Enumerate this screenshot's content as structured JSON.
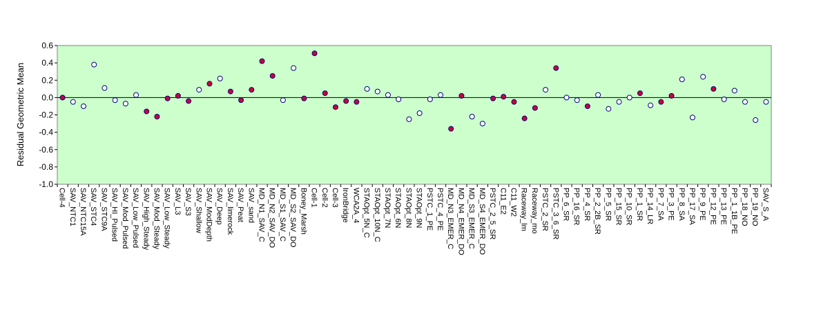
{
  "chart_data": {
    "type": "scatter",
    "title": "",
    "xlabel": "",
    "ylabel": "Residual Geometric Mean",
    "ylim": [
      -1.0,
      0.6
    ],
    "yticks": [
      "0.6",
      "0.4",
      "0.2",
      "0.0",
      "-0.2",
      "-0.4",
      "-0.6",
      "-0.8",
      "-1.0"
    ],
    "grid": false,
    "legend": "none",
    "background_color": "#ccffcc",
    "zero_line": true,
    "categories": [
      "Cell-4",
      "SAV_NTC1",
      "SAV_NTC15A",
      "SAV_STC4",
      "SAV_STC9A",
      "SAV_HI_Pulsed",
      "SAV_Mod_Pulsed",
      "SAV_Low_Pulsed",
      "SAV_High_Steady",
      "SAV_Mod_Steady",
      "SAV_Low_Steady",
      "SAV_L3",
      "SAV_S3",
      "SAV_Shallow",
      "SAV_ModDepth",
      "SAV_Deep",
      "SAV_limerock",
      "SAV_Peat",
      "SAV_sand",
      "MD_N1_SAV_C",
      "MD_N2_SAV_DO",
      "MD_S1_SAV_C",
      "MD_S2_SAV_DO",
      "Boney_Marsh",
      "Cell-1",
      "Cell-2",
      "Cell-3",
      "IronBridge",
      "WCA2A_4",
      "STAOpt_5N_C",
      "STAOpt_10N_C",
      "STAOpt_7N",
      "STAOpt_6N",
      "STAOpt_8N",
      "STAOpt_9N",
      "PSTC_1_PE",
      "PSTC_4_PE",
      "MD_N3_EMER_C",
      "MD_N4_EMER_DO",
      "MD_S3_EMER_C",
      "MD_S4_EMER_DO",
      "PSTC_2_5_SR",
      "C11_E2",
      "C11_W2",
      "Raceway_lm",
      "Raceway_mo",
      "PSTC_2_SR",
      "PSTC_3_6_SR",
      "PP_6_SR",
      "PP_16_SR",
      "PP_4_SR",
      "PP_2_2B_SR",
      "PP_5_SR",
      "PP_15_SR",
      "PP_10_SR",
      "PP_1_SR",
      "PP_14_LR",
      "PP_7_SA",
      "PP_3_PE",
      "PP_8_SA",
      "PP_17_SA",
      "PP_9_PE",
      "PP_12_PE",
      "PP_13_PE",
      "PP_1_1B_PE",
      "PP_18_NO",
      "PP_19_NO",
      "SAV_S_A"
    ],
    "series": [
      {
        "marker": "circle",
        "values": [
          0.0,
          -0.05,
          -0.1,
          0.38,
          0.11,
          -0.03,
          -0.07,
          0.03,
          -0.16,
          -0.22,
          -0.01,
          0.02,
          -0.04,
          0.09,
          0.16,
          0.22,
          0.07,
          -0.03,
          0.09,
          0.42,
          0.25,
          -0.03,
          0.34,
          -0.01,
          0.51,
          0.05,
          -0.11,
          -0.04,
          -0.05,
          0.1,
          0.07,
          0.03,
          -0.02,
          -0.25,
          -0.18,
          -0.02,
          0.03,
          -0.36,
          0.02,
          -0.22,
          -0.3,
          -0.01,
          0.01,
          -0.05,
          -0.24,
          -0.12,
          0.09,
          0.34,
          0.0,
          -0.03,
          -0.1,
          0.03,
          -0.13,
          -0.05,
          0.0,
          0.05,
          -0.09,
          -0.05,
          0.02,
          0.21,
          -0.23,
          0.24,
          0.1,
          -0.02,
          0.08,
          -0.05,
          -0.26,
          -0.05
        ],
        "fills": [
          "#cc0033",
          "#ffffff",
          "#ffffff",
          "#ffffff",
          "#ffffff",
          "#ffffff",
          "#ffffff",
          "#ffffff",
          "#cc0033",
          "#cc0033",
          "#cc0033",
          "#cc0033",
          "#cc0033",
          "#ffffff",
          "#cc0033",
          "#ffffff",
          "#cc0033",
          "#cc0033",
          "#cc0033",
          "#cc0033",
          "#cc0033",
          "#ffffff",
          "#ffffff",
          "#cc0033",
          "#cc0033",
          "#cc0033",
          "#cc0033",
          "#cc0033",
          "#cc0033",
          "#ffffff",
          "#ffffff",
          "#ffffff",
          "#ffffff",
          "#ffffff",
          "#ffffff",
          "#ffffff",
          "#ffffff",
          "#cc0033",
          "#cc0033",
          "#ffffff",
          "#ffffff",
          "#cc0033",
          "#cc0033",
          "#cc0033",
          "#cc0033",
          "#cc0033",
          "#ffffff",
          "#cc0033",
          "#ffffff",
          "#ffffff",
          "#cc0033",
          "#ffffff",
          "#ffffff",
          "#ffffff",
          "#ffffff",
          "#cc0033",
          "#ffffff",
          "#cc0033",
          "#cc0033",
          "#ffffff",
          "#ffffff",
          "#ffffff",
          "#cc0033",
          "#ffffff",
          "#ffffff",
          "#ffffff",
          "#ffffff",
          "#ffffff"
        ]
      }
    ]
  }
}
